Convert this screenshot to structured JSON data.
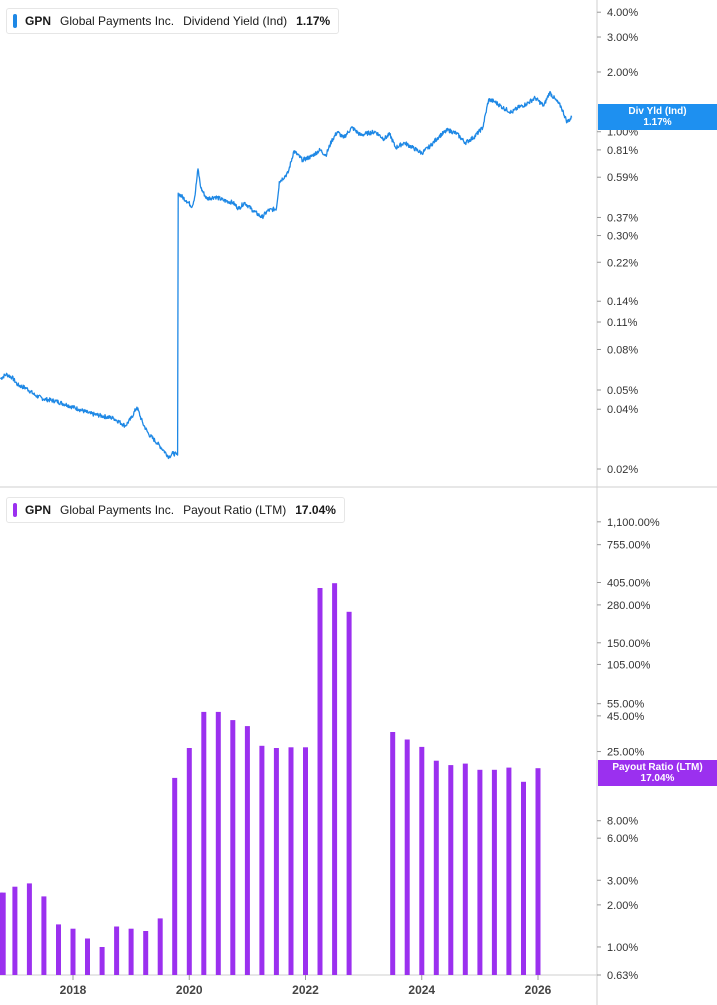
{
  "legend_top": {
    "ticker": "GPN",
    "company": "Global Payments Inc.",
    "metric": "Dividend Yield (Ind)",
    "value": "1.17%"
  },
  "legend_bottom": {
    "ticker": "GPN",
    "company": "Global Payments Inc.",
    "metric": "Payout Ratio (LTM)",
    "value": "17.04%"
  },
  "badge_top": {
    "label": "Div Yld (Ind)",
    "value": "1.17%"
  },
  "badge_bottom": {
    "label": "Payout Ratio (LTM)",
    "value": "17.04%"
  },
  "colors": {
    "yield_line": "#1e88e5",
    "payout_bars": "#9b30ef",
    "grid": "#dddddd"
  },
  "chart_data": [
    {
      "type": "line",
      "scale": "log",
      "ylim": [
        0.017,
        4.4
      ],
      "xlim": [
        2016.75,
        2026.9
      ],
      "y_ticks": [
        {
          "v": 4.0,
          "label": "4.00%"
        },
        {
          "v": 3.0,
          "label": "3.00%"
        },
        {
          "v": 2.0,
          "label": "2.00%"
        },
        {
          "v": 1.0,
          "label": "1.00%"
        },
        {
          "v": 0.81,
          "label": "0.81%"
        },
        {
          "v": 0.59,
          "label": "0.59%"
        },
        {
          "v": 0.37,
          "label": "0.37%"
        },
        {
          "v": 0.3,
          "label": "0.30%"
        },
        {
          "v": 0.22,
          "label": "0.22%"
        },
        {
          "v": 0.14,
          "label": "0.14%"
        },
        {
          "v": 0.11,
          "label": "0.11%"
        },
        {
          "v": 0.08,
          "label": "0.08%"
        },
        {
          "v": 0.05,
          "label": "0.05%"
        },
        {
          "v": 0.04,
          "label": "0.04%"
        },
        {
          "v": 0.02,
          "label": "0.02%"
        }
      ],
      "series": [
        {
          "name": "Dividend Yield (Ind)",
          "points": [
            [
              2016.75,
              0.057
            ],
            [
              2016.85,
              0.06
            ],
            [
              2016.95,
              0.058
            ],
            [
              2017.05,
              0.053
            ],
            [
              2017.2,
              0.051
            ],
            [
              2017.35,
              0.047
            ],
            [
              2017.5,
              0.045
            ],
            [
              2017.7,
              0.044
            ],
            [
              2017.9,
              0.042
            ],
            [
              2018.1,
              0.04
            ],
            [
              2018.3,
              0.038
            ],
            [
              2018.5,
              0.037
            ],
            [
              2018.7,
              0.036
            ],
            [
              2018.9,
              0.033
            ],
            [
              2019.0,
              0.036
            ],
            [
              2019.1,
              0.041
            ],
            [
              2019.2,
              0.034
            ],
            [
              2019.3,
              0.03
            ],
            [
              2019.45,
              0.027
            ],
            [
              2019.55,
              0.025
            ],
            [
              2019.65,
              0.023
            ],
            [
              2019.72,
              0.024
            ],
            [
              2019.8,
              0.0235
            ],
            [
              2019.81,
              0.49
            ],
            [
              2019.95,
              0.45
            ],
            [
              2020.05,
              0.42
            ],
            [
              2020.1,
              0.48
            ],
            [
              2020.15,
              0.65
            ],
            [
              2020.2,
              0.52
            ],
            [
              2020.3,
              0.46
            ],
            [
              2020.45,
              0.47
            ],
            [
              2020.6,
              0.45
            ],
            [
              2020.75,
              0.44
            ],
            [
              2020.85,
              0.41
            ],
            [
              2020.95,
              0.44
            ],
            [
              2021.1,
              0.4
            ],
            [
              2021.25,
              0.37
            ],
            [
              2021.35,
              0.4
            ],
            [
              2021.5,
              0.41
            ],
            [
              2021.55,
              0.56
            ],
            [
              2021.7,
              0.62
            ],
            [
              2021.8,
              0.8
            ],
            [
              2021.95,
              0.72
            ],
            [
              2022.1,
              0.75
            ],
            [
              2022.25,
              0.81
            ],
            [
              2022.35,
              0.76
            ],
            [
              2022.45,
              0.9
            ],
            [
              2022.55,
              1.0
            ],
            [
              2022.65,
              0.93
            ],
            [
              2022.8,
              1.05
            ],
            [
              2022.95,
              0.96
            ],
            [
              2023.05,
              0.98
            ],
            [
              2023.2,
              1.0
            ],
            [
              2023.35,
              0.92
            ],
            [
              2023.45,
              0.97
            ],
            [
              2023.55,
              0.83
            ],
            [
              2023.7,
              0.88
            ],
            [
              2023.85,
              0.83
            ],
            [
              2024.0,
              0.78
            ],
            [
              2024.15,
              0.85
            ],
            [
              2024.3,
              0.95
            ],
            [
              2024.45,
              1.02
            ],
            [
              2024.6,
              0.98
            ],
            [
              2024.75,
              0.88
            ],
            [
              2024.9,
              0.94
            ],
            [
              2025.05,
              1.05
            ],
            [
              2025.15,
              1.45
            ],
            [
              2025.25,
              1.42
            ],
            [
              2025.4,
              1.32
            ],
            [
              2025.55,
              1.25
            ],
            [
              2025.65,
              1.32
            ],
            [
              2025.8,
              1.38
            ],
            [
              2025.95,
              1.48
            ],
            [
              2026.1,
              1.35
            ],
            [
              2026.2,
              1.58
            ],
            [
              2026.3,
              1.45
            ],
            [
              2026.4,
              1.33
            ],
            [
              2026.5,
              1.12
            ],
            [
              2026.58,
              1.18
            ]
          ]
        }
      ]
    },
    {
      "type": "bar",
      "scale": "log",
      "ylim": [
        0.63,
        1500
      ],
      "xlim": [
        2016.75,
        2026.9
      ],
      "y_ticks": [
        {
          "v": 1100,
          "label": "1,100.00%"
        },
        {
          "v": 755,
          "label": "755.00%"
        },
        {
          "v": 405,
          "label": "405.00%"
        },
        {
          "v": 280,
          "label": "280.00%"
        },
        {
          "v": 150,
          "label": "150.00%"
        },
        {
          "v": 105,
          "label": "105.00%"
        },
        {
          "v": 55,
          "label": "55.00%"
        },
        {
          "v": 45,
          "label": "45.00%"
        },
        {
          "v": 25,
          "label": "25.00%"
        },
        {
          "v": 8,
          "label": "8.00%"
        },
        {
          "v": 6,
          "label": "6.00%"
        },
        {
          "v": 3,
          "label": "3.00%"
        },
        {
          "v": 2,
          "label": "2.00%"
        },
        {
          "v": 1,
          "label": "1.00%"
        },
        {
          "v": 0.63,
          "label": "0.63%"
        }
      ],
      "x_ticks": [
        {
          "v": 2018,
          "label": "2018"
        },
        {
          "v": 2020,
          "label": "2020"
        },
        {
          "v": 2022,
          "label": "2022"
        },
        {
          "v": 2024,
          "label": "2024"
        },
        {
          "v": 2026,
          "label": "2026"
        }
      ],
      "series": [
        {
          "name": "Payout Ratio (LTM)",
          "points": [
            [
              2016.75,
              2.45
            ],
            [
              2016.8,
              2.45
            ],
            [
              2017.0,
              2.7
            ],
            [
              2017.25,
              2.85
            ],
            [
              2017.5,
              2.3
            ],
            [
              2017.75,
              1.45
            ],
            [
              2018.0,
              1.35
            ],
            [
              2018.25,
              1.15
            ],
            [
              2018.5,
              1.0
            ],
            [
              2018.75,
              1.4
            ],
            [
              2019.0,
              1.35
            ],
            [
              2019.25,
              1.3
            ],
            [
              2019.5,
              1.6
            ],
            [
              2019.75,
              16.2
            ],
            [
              2020.0,
              26.5
            ],
            [
              2020.25,
              48.0
            ],
            [
              2020.5,
              48.0
            ],
            [
              2020.75,
              42.0
            ],
            [
              2021.0,
              38.0
            ],
            [
              2021.25,
              27.5
            ],
            [
              2021.5,
              26.5
            ],
            [
              2021.75,
              26.8
            ],
            [
              2022.0,
              26.8
            ],
            [
              2022.25,
              370
            ],
            [
              2022.5,
              400
            ],
            [
              2022.75,
              250
            ],
            [
              2023.5,
              34.5
            ],
            [
              2023.75,
              30.5
            ],
            [
              2024.0,
              27.0
            ],
            [
              2024.25,
              21.5
            ],
            [
              2024.5,
              20.0
            ],
            [
              2024.75,
              20.5
            ],
            [
              2025.0,
              18.5
            ],
            [
              2025.25,
              18.5
            ],
            [
              2025.5,
              19.2
            ],
            [
              2025.75,
              15.2
            ],
            [
              2026.0,
              19.0
            ]
          ]
        }
      ]
    }
  ]
}
